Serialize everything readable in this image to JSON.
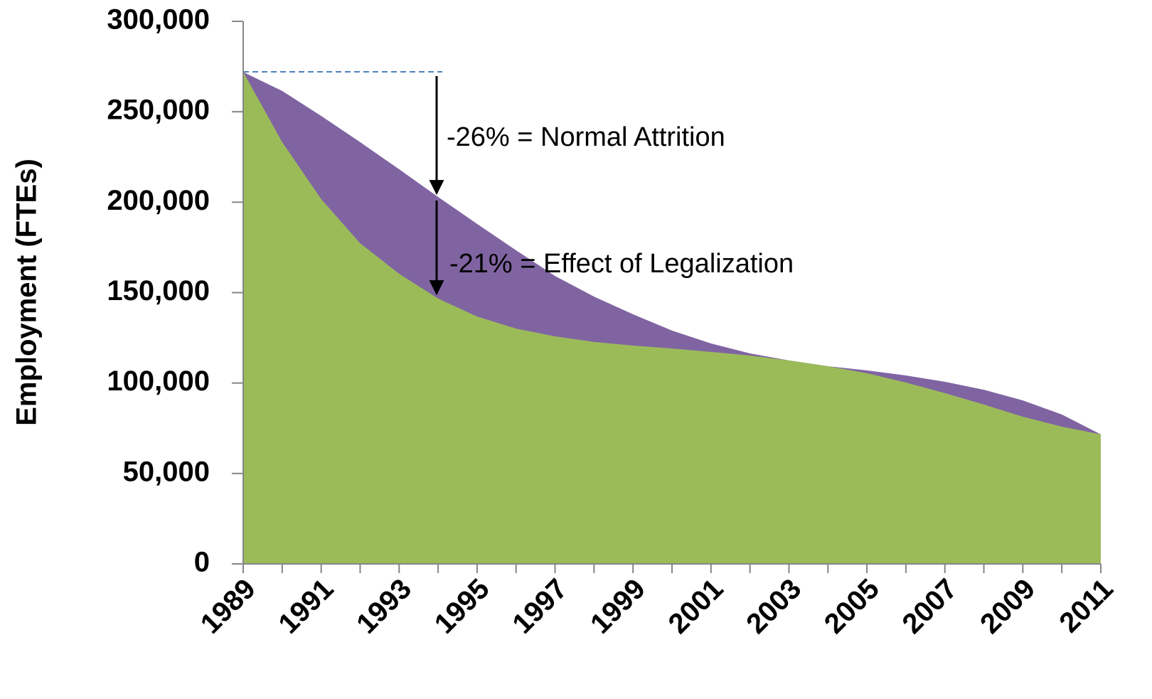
{
  "chart_data": {
    "type": "area",
    "y_label": "Employment (FTEs)",
    "categories": [
      "1989",
      null,
      "1991",
      null,
      "1993",
      null,
      "1995",
      null,
      "1997",
      null,
      "1999",
      null,
      "2001",
      null,
      "2003",
      null,
      "2005",
      null,
      "2007",
      null,
      "2009",
      null,
      "2011"
    ],
    "series": [
      {
        "color": "#8064a2",
        "values": [
          272000,
          261500,
          247700,
          233200,
          218200,
          202900,
          188000,
          173400,
          159200,
          147800,
          138000,
          129000,
          121900,
          116400,
          112500,
          109300,
          107000,
          104200,
          100700,
          96300,
          90400,
          82600,
          71600
        ]
      },
      {
        "color": "#9bbb59",
        "values": [
          272000,
          233200,
          201700,
          177300,
          160400,
          146700,
          136800,
          130100,
          125800,
          122700,
          120700,
          119100,
          117200,
          115200,
          112500,
          109300,
          105400,
          100300,
          94400,
          88100,
          81400,
          75900,
          71600
        ]
      }
    ],
    "ylim": [
      0,
      300000
    ],
    "yticks": [
      0,
      {
        "value": 50000,
        "label": "50,000"
      },
      {
        "value": 100000,
        "label": "100,000"
      },
      {
        "value": 150000,
        "label": "150,000"
      },
      {
        "value": 200000,
        "label": "200,000"
      },
      {
        "value": 250000,
        "label": "250,000"
      },
      {
        "value": 300000,
        "label": "300,000"
      }
    ],
    "annotations": [
      "-26% = Normal Attrition",
      "-21% = Effect of Legalization"
    ]
  }
}
